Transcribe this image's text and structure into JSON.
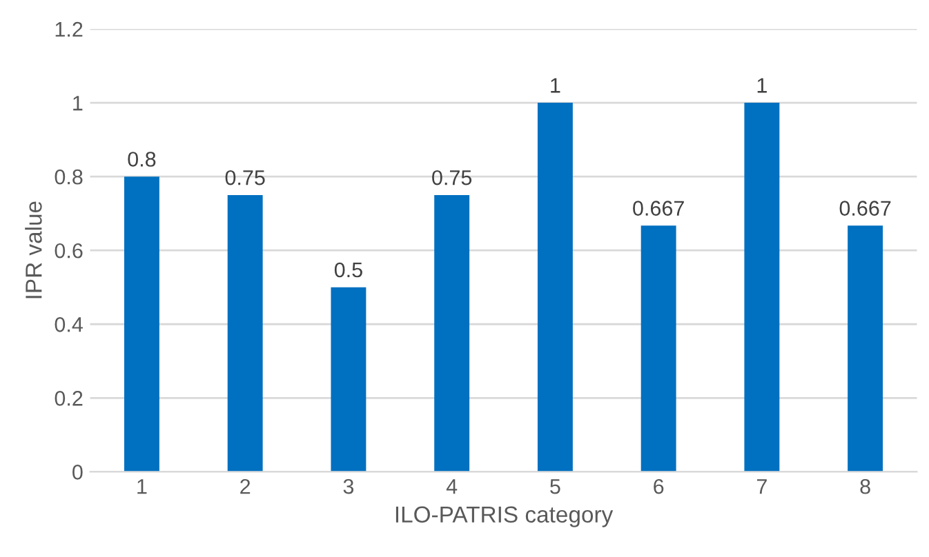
{
  "chart_data": {
    "type": "bar",
    "xlabel": "ILO-PATRIS category",
    "ylabel": "IPR value",
    "categories": [
      "1",
      "2",
      "3",
      "4",
      "5",
      "6",
      "7",
      "8"
    ],
    "values": [
      0.8,
      0.75,
      0.5,
      0.75,
      1,
      0.667,
      1,
      0.667
    ],
    "color": "#0070c0",
    "data_labels": true,
    "ylim": [
      0,
      1.2
    ],
    "yticks": [
      0,
      {
        "value": 0.2,
        "label": "0.2"
      },
      {
        "value": 0.4,
        "label": "0.4"
      },
      {
        "value": 0.6,
        "label": "0.6"
      },
      {
        "value": 0.8,
        "label": "0.8"
      },
      1,
      {
        "value": 1.2,
        "label": "1.2"
      }
    ],
    "grid": "y",
    "legend": false
  }
}
